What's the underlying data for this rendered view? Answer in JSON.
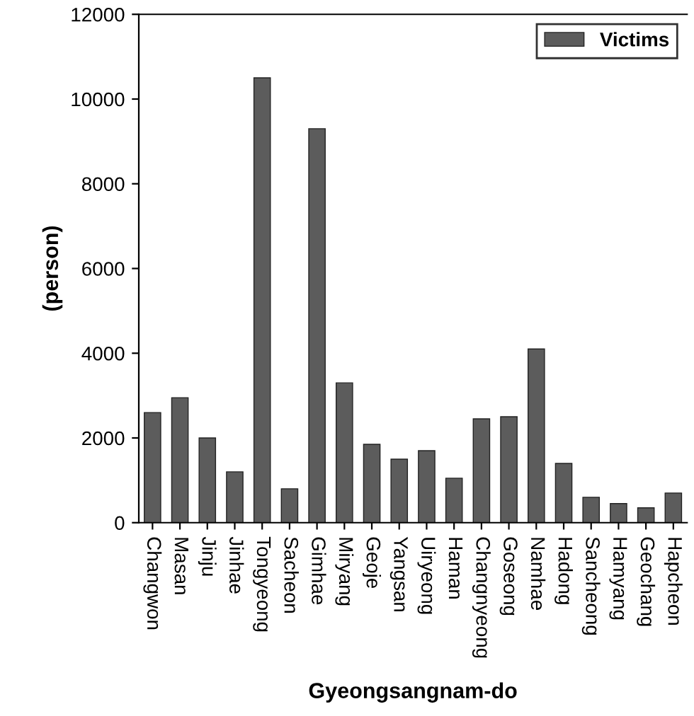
{
  "chart_data": {
    "type": "bar",
    "xlabel": "Gyeongsangnam-do",
    "ylabel": "(person)",
    "categories": [
      "Changwon",
      "Masan",
      "Jinju",
      "Jinhae",
      "Tongyeong",
      "Sacheon",
      "Gimhae",
      "Miryang",
      "Geoje",
      "Yangsan",
      "Uiryeong",
      "Haman",
      "Changnyeong",
      "Goseong",
      "Namhae",
      "Hadong",
      "Sancheong",
      "Hamyang",
      "Geochang",
      "Hapcheon"
    ],
    "series": [
      {
        "name": "Victims",
        "color": "#5c5c5c",
        "values": [
          2600,
          2950,
          2000,
          1200,
          10500,
          800,
          9300,
          3300,
          1850,
          1500,
          1700,
          1050,
          2450,
          2500,
          4100,
          1400,
          600,
          450,
          350,
          700
        ]
      }
    ],
    "ylim": [
      0,
      12000
    ],
    "yticks": [
      0,
      2000,
      4000,
      6000,
      8000,
      10000,
      12000
    ],
    "grid": false,
    "legend": "top right"
  }
}
